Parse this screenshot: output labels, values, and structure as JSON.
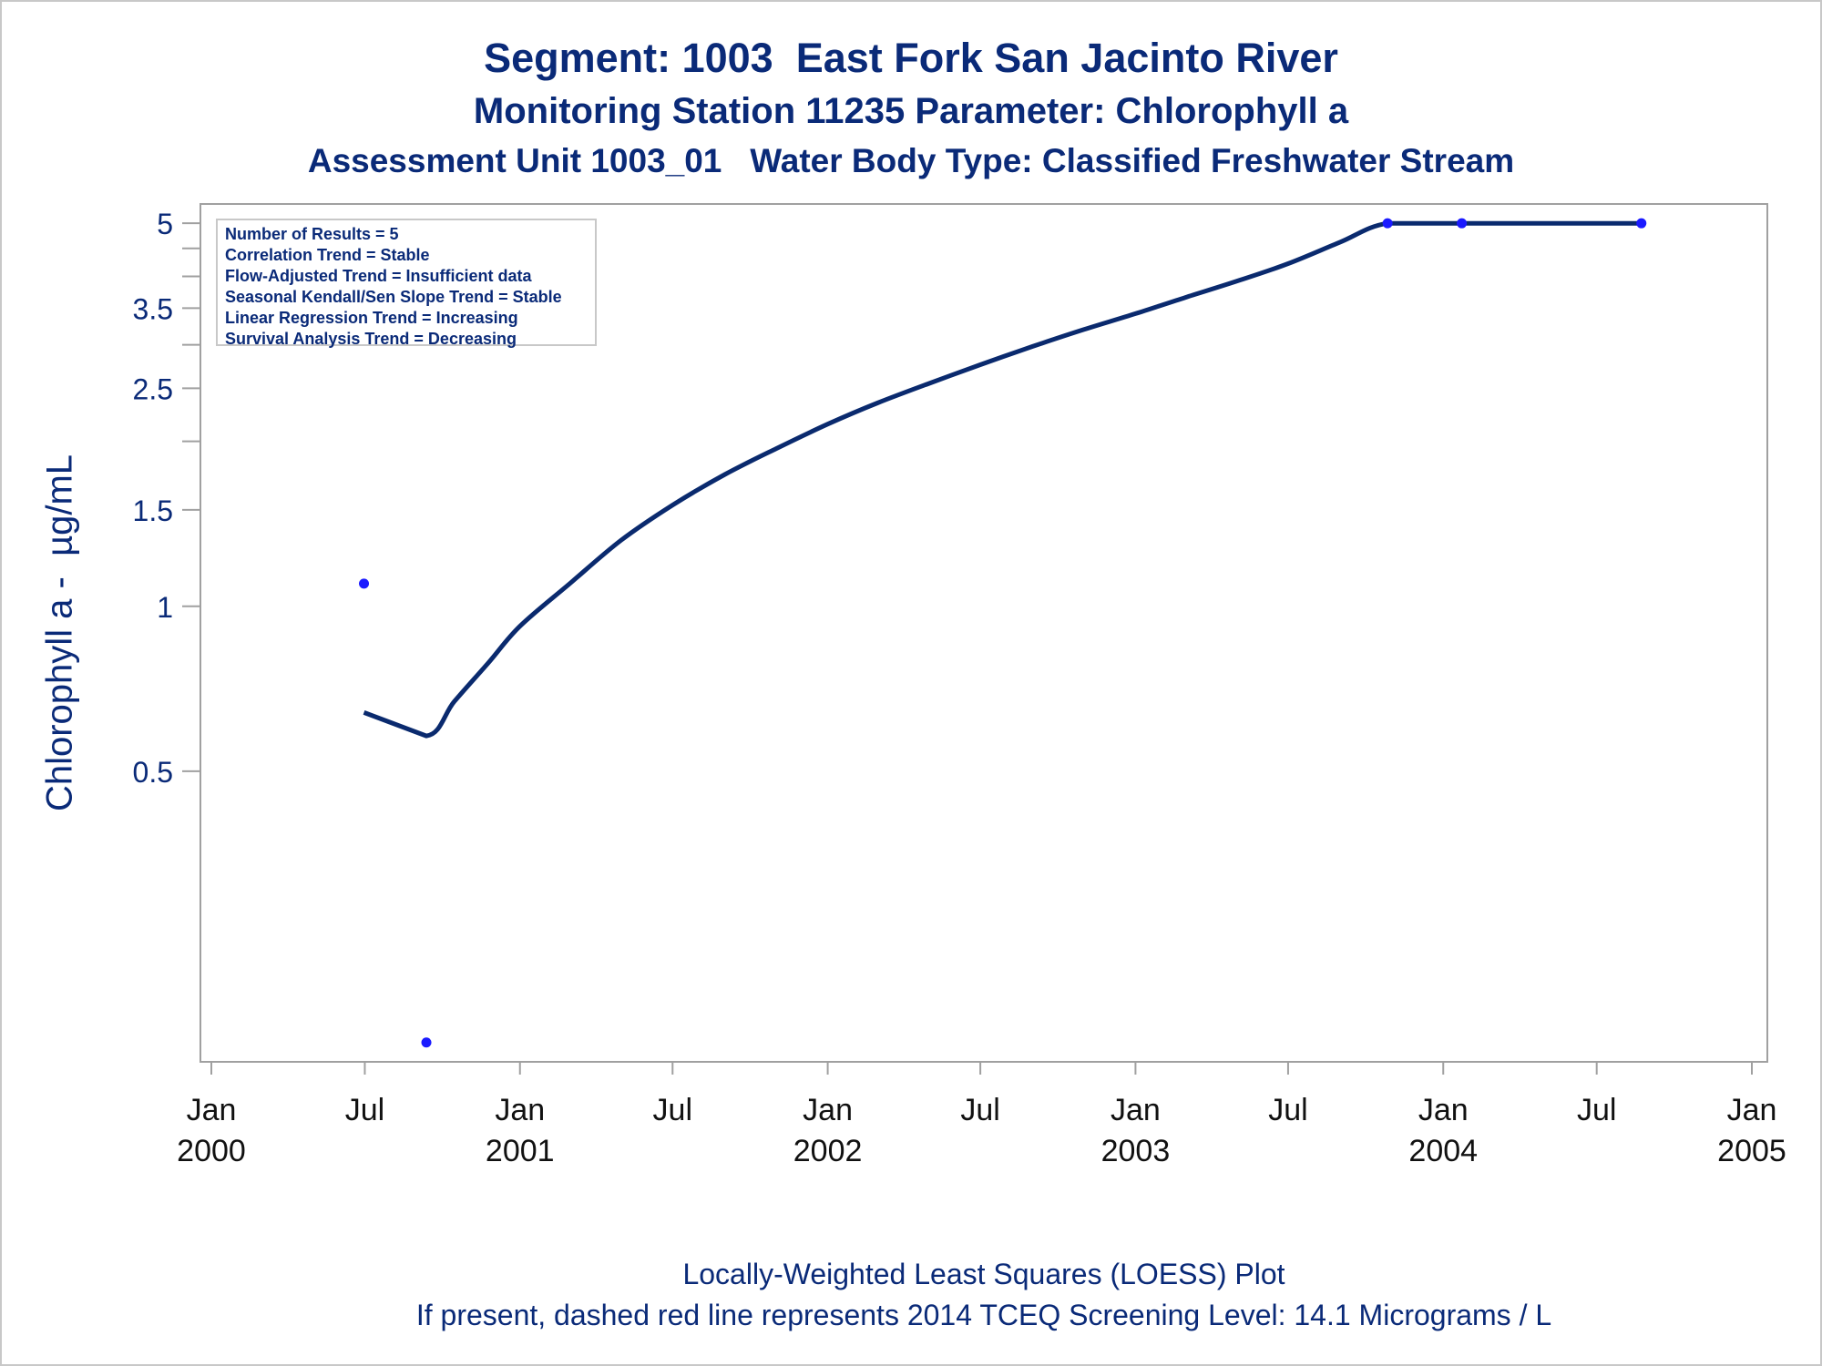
{
  "chart_data": {
    "type": "line",
    "title": "Segment: 1003  East Fork San Jacinto River",
    "subtitle": "Monitoring Station 11235 Parameter: Chlorophyll a",
    "subtitle2": "Assessment Unit 1003_01   Water Body Type: Classified Freshwater Stream",
    "ylabel": "Chlorophyll a -  µg/mL",
    "xlabel": "",
    "y_scale": "log",
    "ylim": [
      0.155,
      5.1
    ],
    "xlim": [
      "2000-01-01",
      "2005-01-01"
    ],
    "y_ticks": [
      {
        "value": 0.5,
        "label": "0.5"
      },
      {
        "value": 1,
        "label": "1"
      },
      {
        "value": 1.5,
        "label": "1.5"
      },
      {
        "value": 2,
        "label": ""
      },
      {
        "value": 2.5,
        "label": "2.5"
      },
      {
        "value": 3,
        "label": ""
      },
      {
        "value": 3.5,
        "label": "3.5"
      },
      {
        "value": 4,
        "label": ""
      },
      {
        "value": 4.5,
        "label": ""
      },
      {
        "value": 5,
        "label": "5"
      }
    ],
    "x_ticks": [
      {
        "date": "2000-01-01",
        "month": "Jan",
        "year": "2000"
      },
      {
        "date": "2000-07-01",
        "month": "Jul",
        "year": ""
      },
      {
        "date": "2001-01-01",
        "month": "Jan",
        "year": "2001"
      },
      {
        "date": "2001-07-01",
        "month": "Jul",
        "year": ""
      },
      {
        "date": "2002-01-01",
        "month": "Jan",
        "year": "2002"
      },
      {
        "date": "2002-07-01",
        "month": "Jul",
        "year": ""
      },
      {
        "date": "2003-01-01",
        "month": "Jan",
        "year": "2003"
      },
      {
        "date": "2003-07-01",
        "month": "Jul",
        "year": ""
      },
      {
        "date": "2004-01-01",
        "month": "Jan",
        "year": "2004"
      },
      {
        "date": "2004-07-01",
        "month": "Jul",
        "year": ""
      },
      {
        "date": "2005-01-01",
        "month": "Jan",
        "year": "2005"
      }
    ],
    "grid": false,
    "points": [
      {
        "x": "2000-06-30",
        "y": 1.1
      },
      {
        "x": "2000-09-12",
        "y": 0.16
      },
      {
        "x": "2003-10-27",
        "y": 5.0
      },
      {
        "x": "2004-01-23",
        "y": 5.0
      },
      {
        "x": "2004-08-23",
        "y": 5.0
      }
    ],
    "loess_curve": [
      {
        "x": "2000-06-30",
        "y": 0.64
      },
      {
        "x": "2000-09-12",
        "y": 0.58
      },
      {
        "x": "2000-10-15",
        "y": 0.67
      },
      {
        "x": "2000-11-25",
        "y": 0.79
      },
      {
        "x": "2001-01-01",
        "y": 0.92
      },
      {
        "x": "2001-03-01",
        "y": 1.1
      },
      {
        "x": "2001-05-01",
        "y": 1.32
      },
      {
        "x": "2001-07-01",
        "y": 1.53
      },
      {
        "x": "2001-09-01",
        "y": 1.74
      },
      {
        "x": "2001-11-01",
        "y": 1.94
      },
      {
        "x": "2002-01-01",
        "y": 2.15
      },
      {
        "x": "2002-03-01",
        "y": 2.35
      },
      {
        "x": "2002-05-01",
        "y": 2.55
      },
      {
        "x": "2002-07-01",
        "y": 2.76
      },
      {
        "x": "2002-09-01",
        "y": 2.98
      },
      {
        "x": "2002-11-01",
        "y": 3.2
      },
      {
        "x": "2003-01-01",
        "y": 3.42
      },
      {
        "x": "2003-03-01",
        "y": 3.66
      },
      {
        "x": "2003-05-01",
        "y": 3.92
      },
      {
        "x": "2003-07-01",
        "y": 4.22
      },
      {
        "x": "2003-09-01",
        "y": 4.62
      },
      {
        "x": "2003-10-27",
        "y": 5.0
      },
      {
        "x": "2004-01-23",
        "y": 5.0
      },
      {
        "x": "2004-08-23",
        "y": 5.0
      }
    ],
    "stats_box": [
      "Number of Results = 5",
      "Correlation Trend = Stable",
      "Flow-Adjusted Trend = Insufficient data",
      "Seasonal Kendall/Sen Slope Trend = Stable",
      "Linear Regression Trend = Increasing",
      "Survival Analysis Trend = Decreasing"
    ],
    "footnote1": "Locally-Weighted Least Squares (LOESS) Plot",
    "footnote2": "If present, dashed red line represents 2014 TCEQ Screening Level: 14.1 Micrograms / L",
    "colors": {
      "text": "#0a2a78",
      "line": "#0a2a6e",
      "points": "#1a1aff",
      "frame": "#a0a0a0"
    }
  }
}
